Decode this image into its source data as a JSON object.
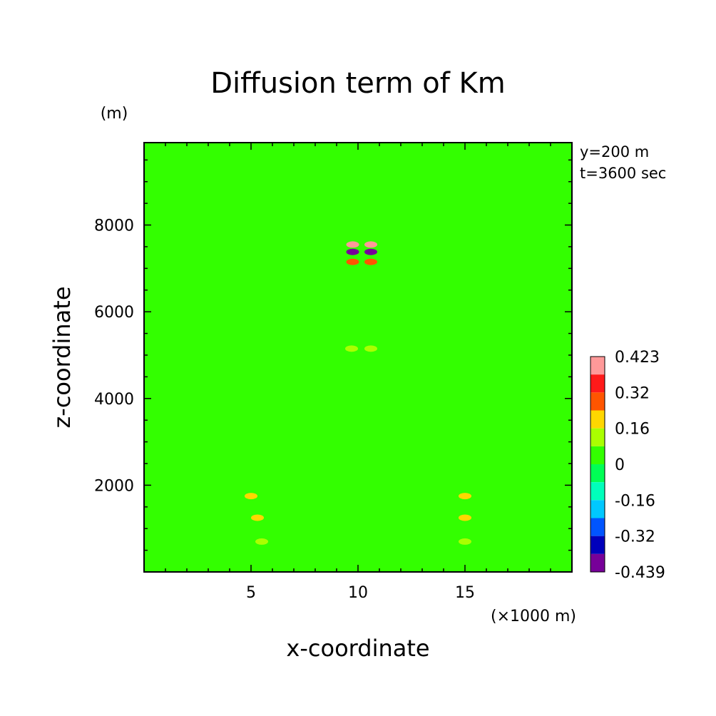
{
  "chart_data": {
    "type": "heatmap",
    "title": "Diffusion term of Km",
    "xlabel": "x-coordinate",
    "ylabel": "z-coordinate",
    "x_unit": "(×1000 m)",
    "y_unit": "(m)",
    "annotations": [
      "y=200 m",
      "t=3600 sec"
    ],
    "xlim": [
      0,
      20
    ],
    "ylim": [
      0,
      9900
    ],
    "x_ticks": [
      5,
      10,
      15
    ],
    "y_ticks": [
      2000,
      4000,
      6000,
      8000
    ],
    "background_value": 0,
    "background_color": "#33ff00",
    "colorbar": {
      "levels": [
        0.423,
        0.32,
        0.16,
        0,
        -0.16,
        -0.32,
        -0.439
      ],
      "colors_top_to_bottom": [
        "#ff9999",
        "#ff1a1a",
        "#ff5500",
        "#ffd700",
        "#aaff00",
        "#33ff00",
        "#00ff55",
        "#00ffbb",
        "#00c8ff",
        "#0055ff",
        "#0000bb",
        "#770099"
      ],
      "legend_placement": "right"
    },
    "features": [
      {
        "x": 9.75,
        "z": 7550,
        "value": 0.4
      },
      {
        "x": 10.6,
        "z": 7550,
        "value": 0.4
      },
      {
        "x": 9.75,
        "z": 7380,
        "value": -0.4
      },
      {
        "x": 10.6,
        "z": 7380,
        "value": -0.4
      },
      {
        "x": 9.75,
        "z": 7150,
        "value": 0.25
      },
      {
        "x": 10.6,
        "z": 7150,
        "value": 0.25
      },
      {
        "x": 9.7,
        "z": 5150,
        "value": 0.12
      },
      {
        "x": 10.6,
        "z": 5150,
        "value": 0.12
      },
      {
        "x": 5.0,
        "z": 1750,
        "value": 0.15
      },
      {
        "x": 15.0,
        "z": 1750,
        "value": 0.15
      },
      {
        "x": 5.3,
        "z": 1250,
        "value": 0.2
      },
      {
        "x": 15.0,
        "z": 1250,
        "value": 0.2
      },
      {
        "x": 5.5,
        "z": 700,
        "value": 0.12
      },
      {
        "x": 15.0,
        "z": 700,
        "value": 0.12
      }
    ]
  }
}
